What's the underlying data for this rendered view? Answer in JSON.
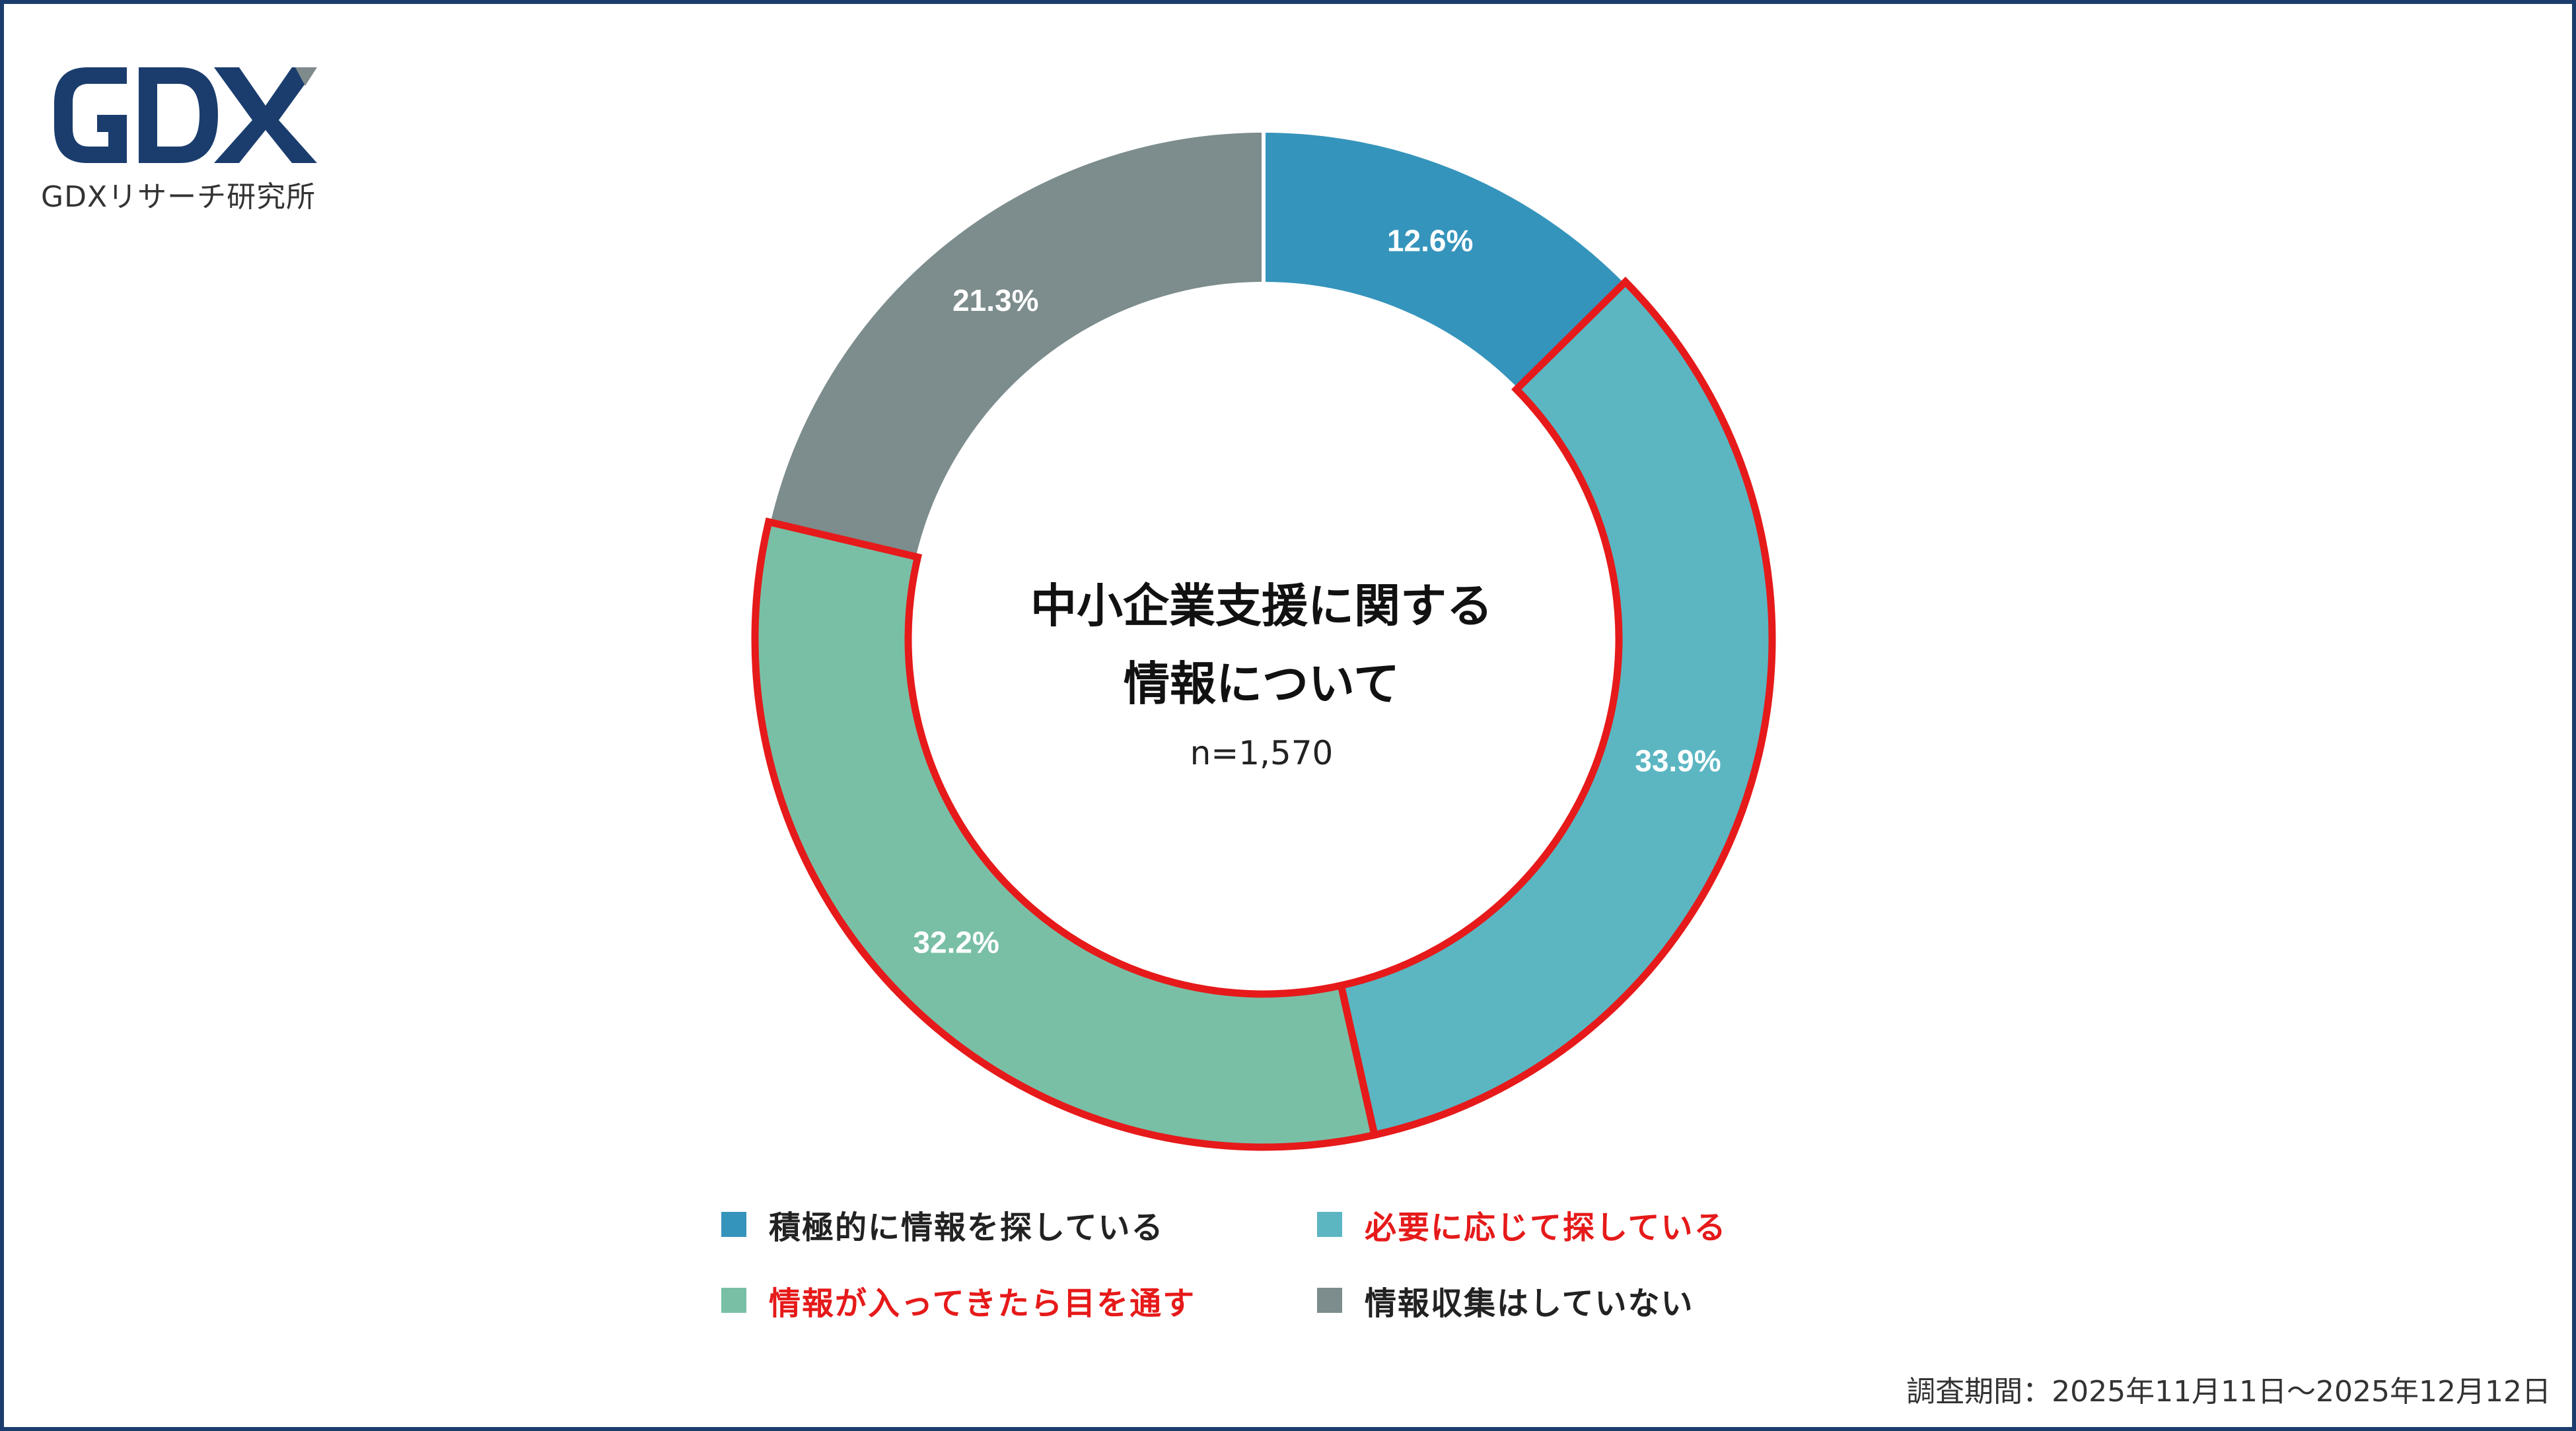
{
  "brand": {
    "logo_text": "GDX",
    "subtitle": "GDXリサーチ研究所",
    "logo_color": "#1b3d6e",
    "logo_accent_color": "#7f8a8c"
  },
  "chart_data": {
    "type": "pie",
    "donut": true,
    "title_lines": [
      "中小企業支援に関する",
      "情報について"
    ],
    "sample_size": "n=1,570",
    "unit": "%",
    "categories": [
      "積極的に情報を探している",
      "必要に応じて探している",
      "情報が入ってきたら目を通す",
      "情報収集はしていない"
    ],
    "values": [
      12.6,
      33.9,
      32.2,
      21.3
    ],
    "value_labels": [
      "12.6%",
      "33.9%",
      "32.2%",
      "21.3%"
    ],
    "colors": [
      "#3594bb",
      "#5bb6c2",
      "#79bfa6",
      "#7d8c8c"
    ],
    "highlighted": [
      false,
      true,
      true,
      false
    ],
    "highlight_color": "#e61a1a",
    "legend_position": "bottom"
  },
  "legend": {
    "items": [
      {
        "label": "積極的に情報を探している",
        "color": "#3594bb",
        "label_color": "#222222"
      },
      {
        "label": "必要に応じて探している",
        "color": "#5bb6c2",
        "label_color": "#e61a1a"
      },
      {
        "label": "情報が入ってきたら目を通す",
        "color": "#79bfa6",
        "label_color": "#e61a1a"
      },
      {
        "label": "情報収集はしていない",
        "color": "#7d8c8c",
        "label_color": "#222222"
      }
    ]
  },
  "footnote": "調査期間：2025年11月11日～2025年12月12日"
}
